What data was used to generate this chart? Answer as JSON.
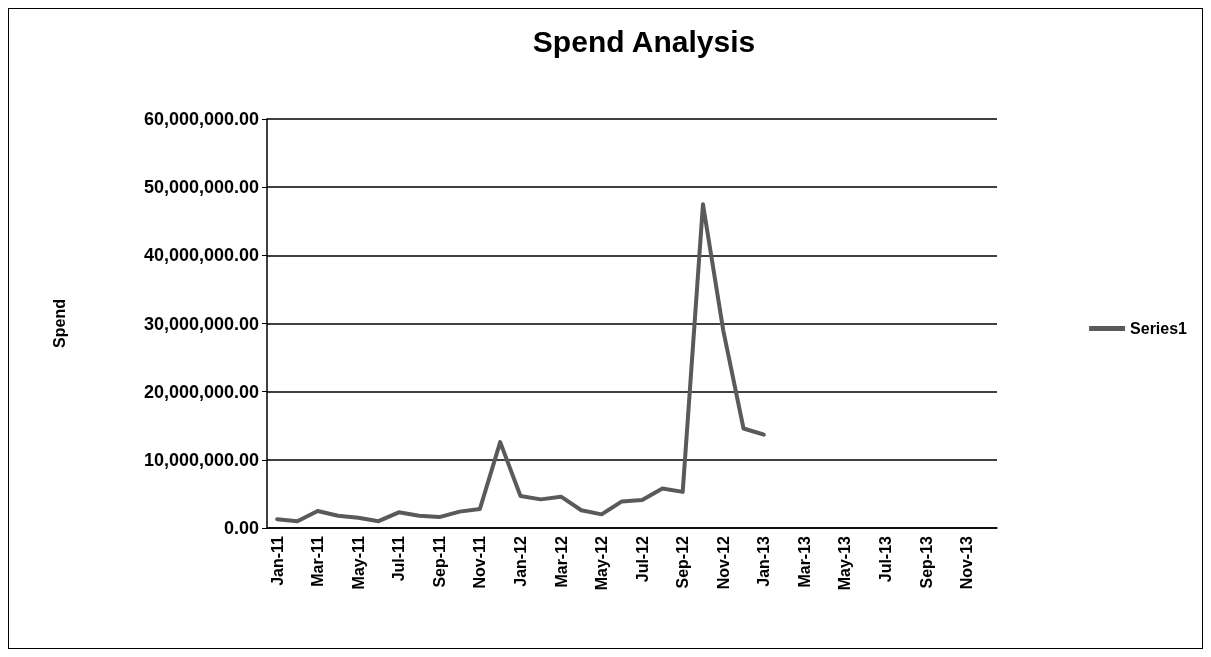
{
  "chart_data": {
    "type": "line",
    "title": "Spend Analysis",
    "ylabel": "Spend",
    "categories": [
      "Jan-11",
      null,
      "Mar-11",
      null,
      "May-11",
      null,
      "Jul-11",
      null,
      "Sep-11",
      null,
      "Nov-11",
      null,
      "Jan-12",
      null,
      "Mar-12",
      null,
      "May-12",
      null,
      "Jul-12",
      null,
      "Sep-12",
      null,
      "Nov-12",
      null,
      "Jan-13",
      null,
      "Mar-13",
      null,
      "May-13",
      null,
      "Jul-13",
      null,
      "Sep-13",
      null,
      "Nov-13",
      null
    ],
    "series": [
      {
        "name": "Series1",
        "color": "#5a5a5a",
        "values": [
          1300000,
          1000000,
          2500000,
          1800000,
          1500000,
          1000000,
          2300000,
          1800000,
          1600000,
          2400000,
          2800000,
          12600000,
          4700000,
          4200000,
          4600000,
          2600000,
          2000000,
          3900000,
          4100000,
          5800000,
          5300000,
          47500000,
          29000000,
          14600000,
          13700000,
          null,
          null,
          null,
          null,
          null,
          null,
          null,
          null,
          null,
          null,
          null
        ]
      }
    ],
    "ylim": [
      0,
      60000000
    ],
    "yticks": [
      {
        "value": 0,
        "label": "0.00"
      },
      {
        "value": 10000000,
        "label": "10,000,000.00"
      },
      {
        "value": 20000000,
        "label": "20,000,000.00"
      },
      {
        "value": 30000000,
        "label": "30,000,000.00"
      },
      {
        "value": 40000000,
        "label": "40,000,000.00"
      },
      {
        "value": 50000000,
        "label": "50,000,000.00"
      },
      {
        "value": 60000000,
        "label": "60,000,000.00"
      }
    ],
    "grid": "y",
    "legend": "right",
    "marker": "none",
    "line_style": "solid"
  }
}
